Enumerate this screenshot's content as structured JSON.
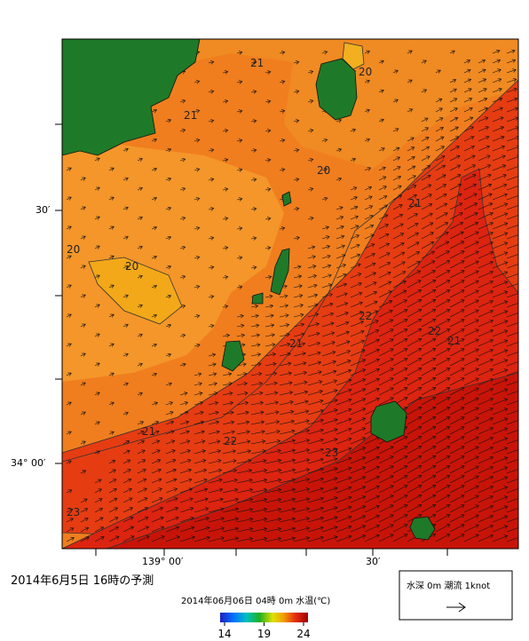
{
  "title": "2014年6月5日 16時の予測",
  "map": {
    "subtitle": "2014年06月06日 04時 0m 水温(℃)",
    "y_labels": [
      "30′",
      "34° 00′"
    ],
    "x_labels": [
      "139° 00′",
      "30′"
    ],
    "contour_labels": [
      21,
      20,
      21,
      20,
      21,
      20,
      20,
      22,
      22,
      21,
      21,
      21,
      22,
      23,
      23
    ],
    "colorbar": {
      "lim": [
        14,
        24
      ],
      "ticks": [
        14,
        19,
        24
      ]
    }
  },
  "legend": {
    "label": "水深 0m 潮流 1knot"
  }
}
